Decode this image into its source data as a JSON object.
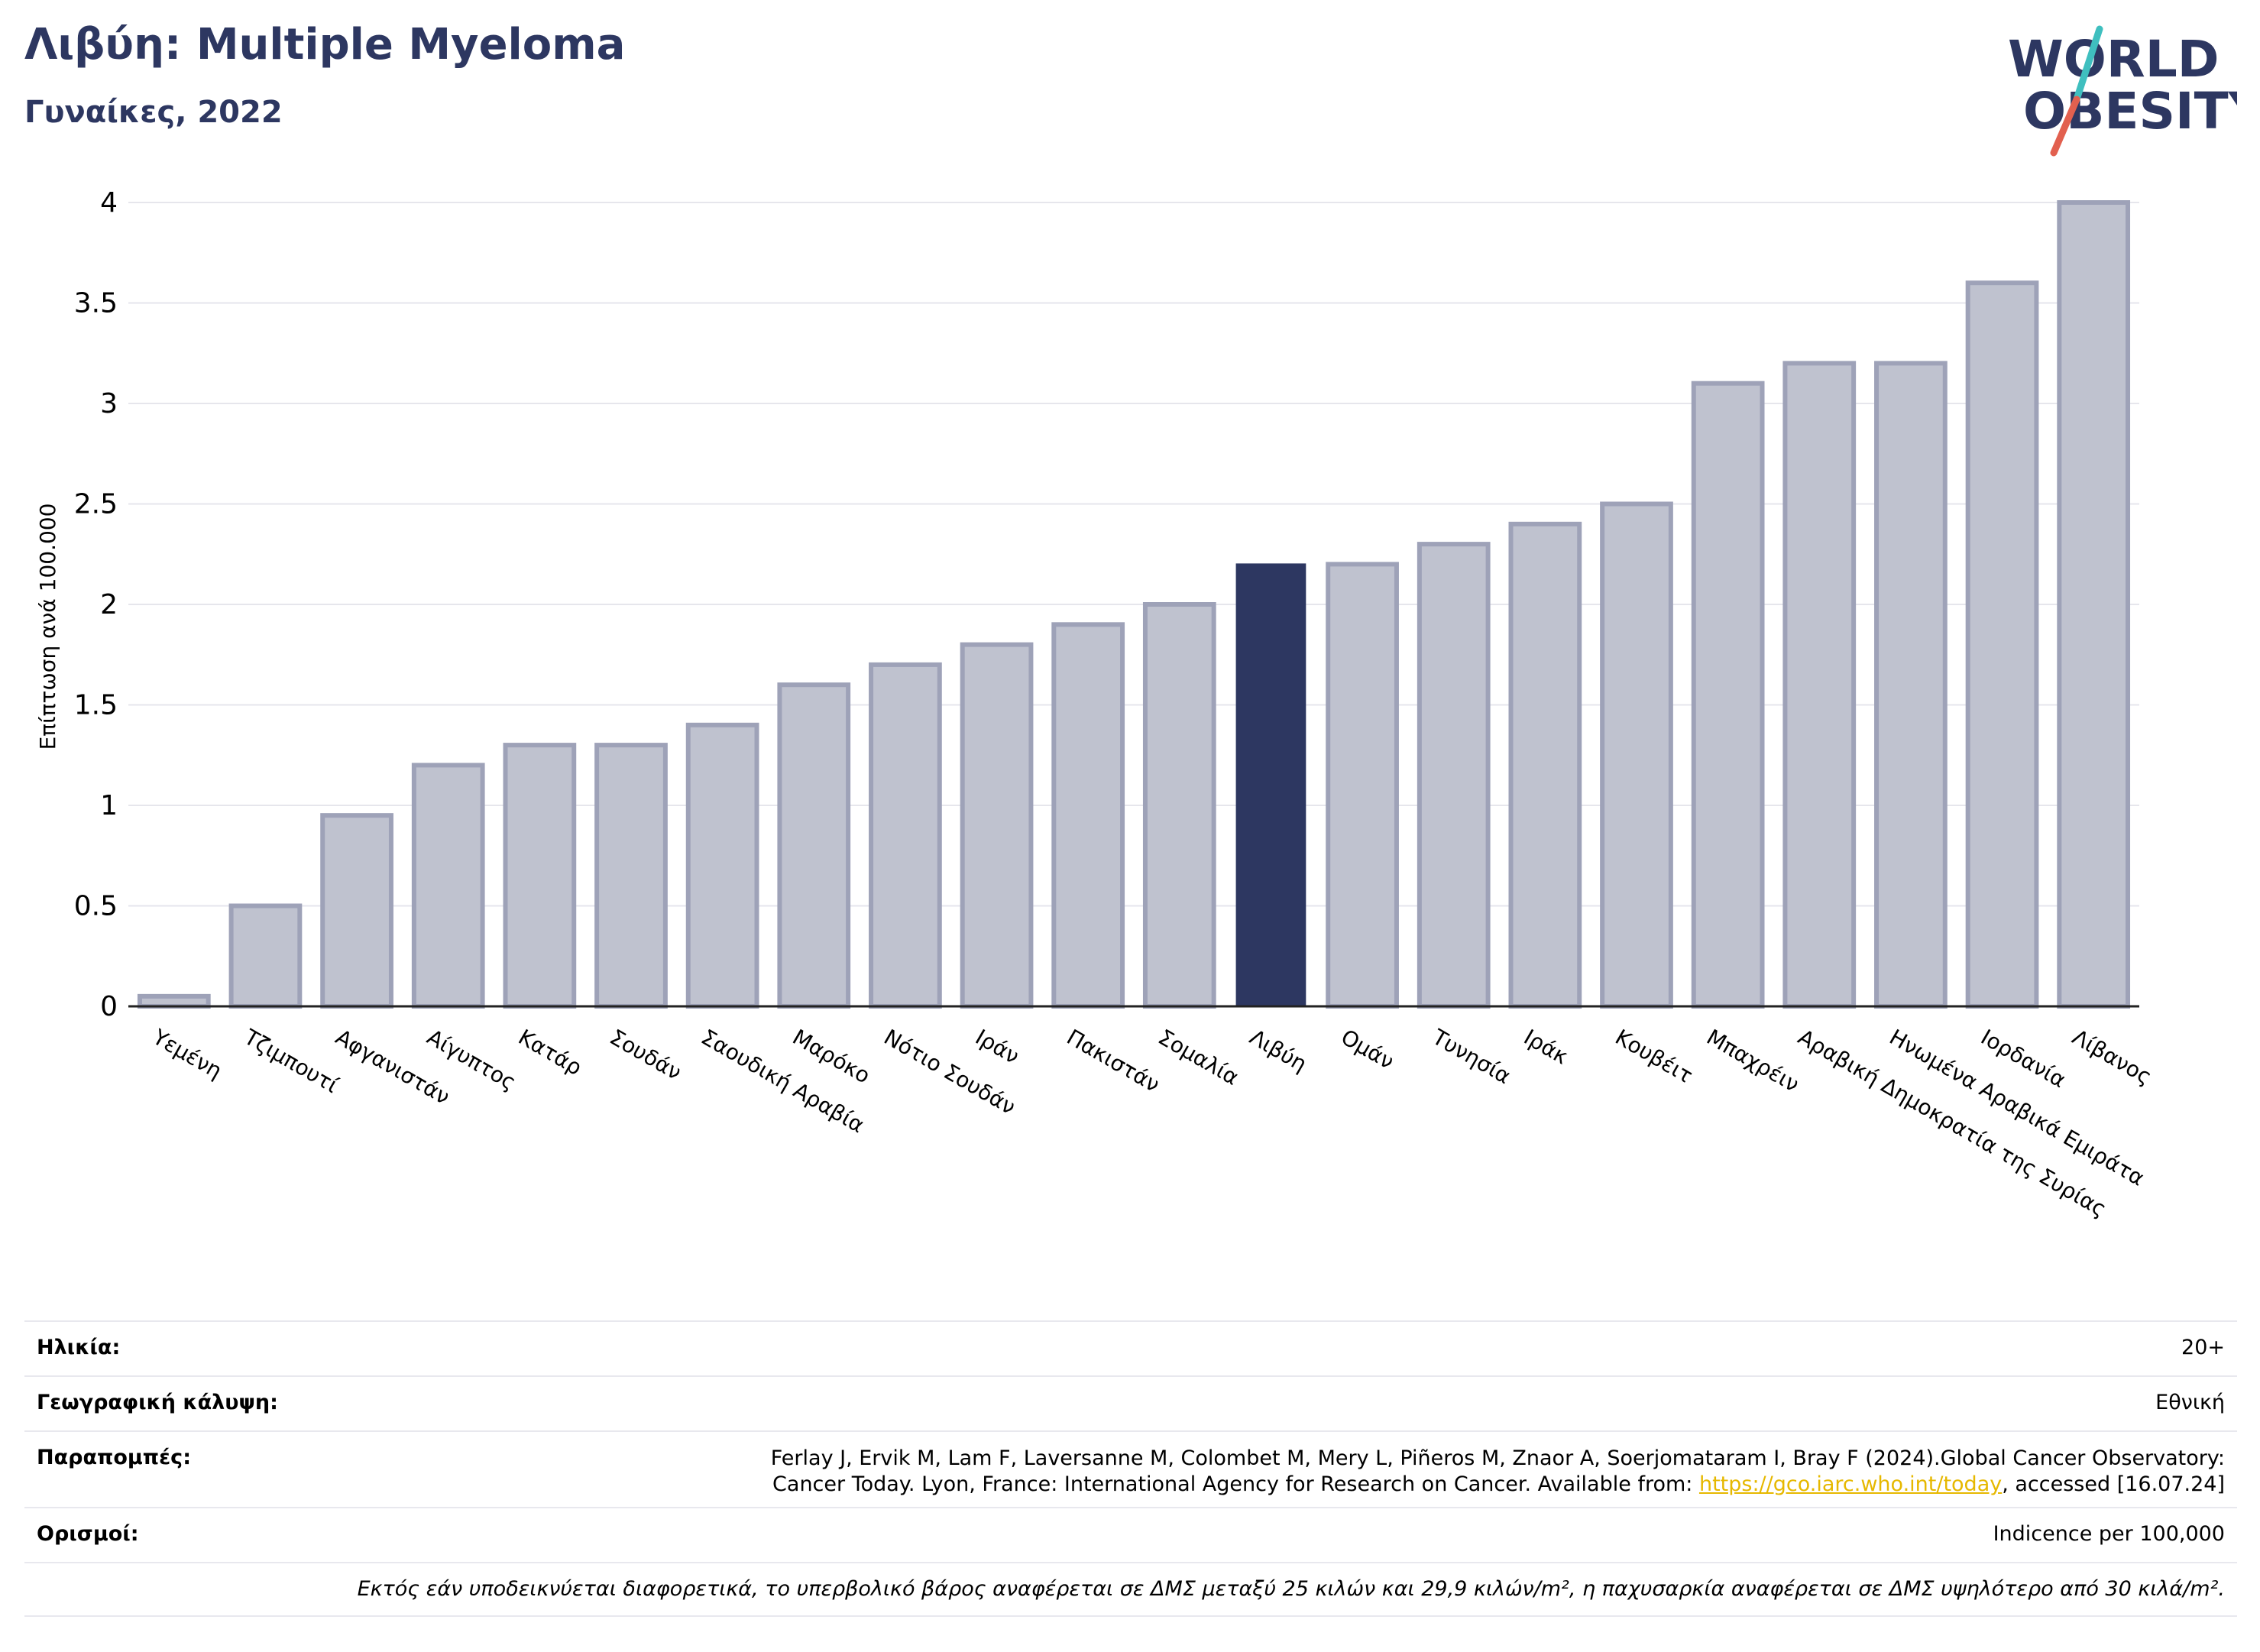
{
  "header": {
    "title": "Λιβύη: Multiple Myeloma",
    "subtitle": "Γυναίκες, 2022"
  },
  "logo": {
    "line1": "WORLD",
    "line2": "OBESITY"
  },
  "colors": {
    "bar": "#bfc2cf",
    "bar_border": "#9ea2b8",
    "highlight": "#2d3761",
    "grid": "#e6e6ec",
    "brand_navy": "#2d3761",
    "brand_teal": "#3fbfbf",
    "brand_red": "#e2604f"
  },
  "chart_data": {
    "type": "bar",
    "title": "Λιβύη: Multiple Myeloma",
    "subtitle": "Γυναίκες, 2022",
    "ylabel": "Επίπτωση ανά 100.000",
    "xlabel": "",
    "ylim": [
      0,
      4
    ],
    "yticks": [
      0,
      0.5,
      1,
      1.5,
      2,
      2.5,
      3,
      3.5,
      4
    ],
    "ytick_labels": [
      "0",
      "0.5",
      "1",
      "1.5",
      "2",
      "2.5",
      "3",
      "3.5",
      "4"
    ],
    "grid": true,
    "highlight": "Λιβύη",
    "categories": [
      "Υεμένη",
      "Τζιμπουτί",
      "Αφγανιστάν",
      "Αίγυπτος",
      "Κατάρ",
      "Σουδάν",
      "Σαουδική Αραβία",
      "Μαρόκο",
      "Νότιο Σουδάν",
      "Ιράν",
      "Πακιστάν",
      "Σομαλία",
      "Λιβύη",
      "Ομάν",
      "Τυνησία",
      "Ιράκ",
      "Κουβέιτ",
      "Μπαχρέιν",
      "Αραβική Δημοκρατία της Συρίας",
      "Ηνωμένα Αραβικά Εμιράτα",
      "Ιορδανία",
      "Λίβανος"
    ],
    "values": [
      0.05,
      0.5,
      0.95,
      1.2,
      1.3,
      1.3,
      1.4,
      1.6,
      1.7,
      1.8,
      1.9,
      2.0,
      2.2,
      2.2,
      2.3,
      2.4,
      2.5,
      3.1,
      3.2,
      3.2,
      3.6,
      4.0
    ]
  },
  "info": {
    "age_label": "Ηλικία:",
    "age_value": "20+",
    "coverage_label": "Γεωγραφική κάλυψη:",
    "coverage_value": "Εθνική",
    "refs_label": "Παραπομπές:",
    "refs_line1": "Ferlay J, Ervik M, Lam F, Laversanne M, Colombet M, Mery L, Piñeros M, Znaor A, Soerjomataram I, Bray F (2024).Global Cancer Observatory:",
    "refs_line2_pre": "Cancer Today. Lyon, France: International Agency for Research on Cancer. Available from: ",
    "refs_link": "https://gco.iarc.who.int/today",
    "refs_line2_post": ", accessed [16.07.24]",
    "definitions_label": "Ορισμοί:",
    "definitions_value": "Indicence per 100,000",
    "footnote": "Εκτός εάν υποδεικνύεται διαφορετικά, το υπερβολικό βάρος αναφέρεται σε ΔΜΣ μεταξύ 25 κιλών και 29,9 κιλών/m², η παχυσαρκία αναφέρεται σε ΔΜΣ υψηλότερο από 30 κιλά/m²."
  }
}
